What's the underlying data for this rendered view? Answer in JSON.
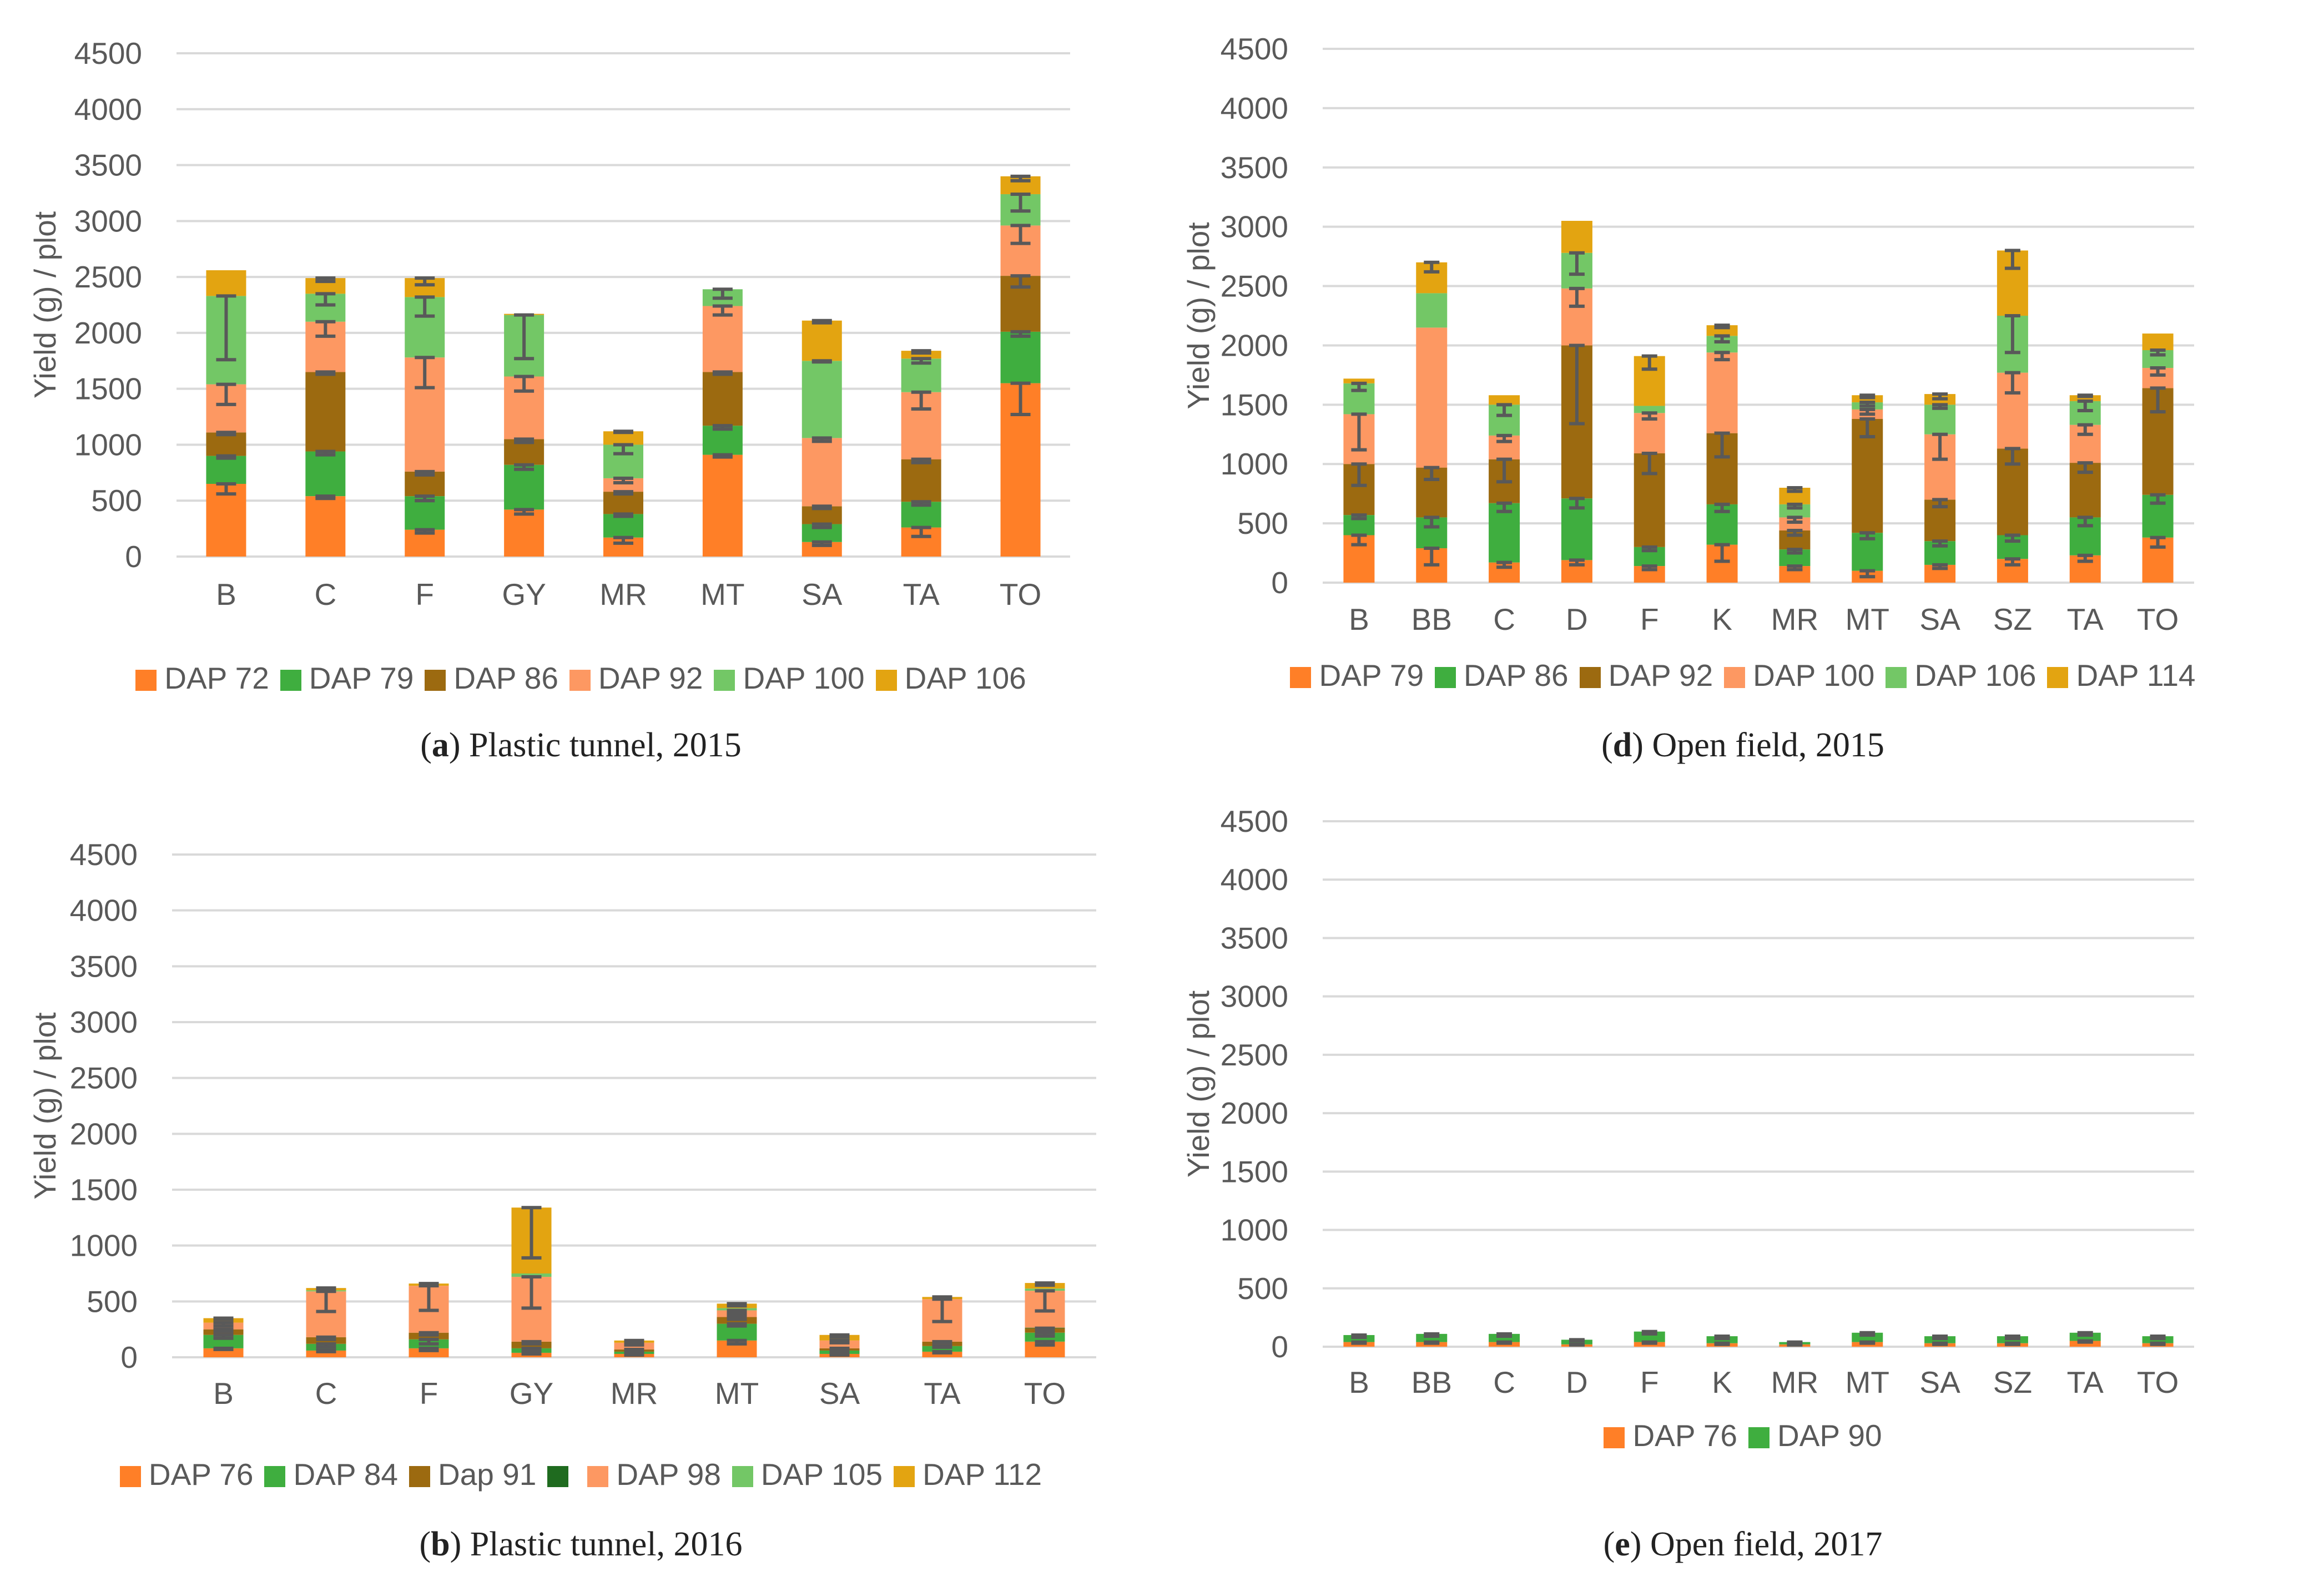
{
  "chart_data": [
    {
      "id": "a",
      "type": "bar",
      "stacked": true,
      "ylabel": "Yield (g) / plot",
      "ylim": [
        0,
        4500
      ],
      "yticks": [
        0,
        500,
        1000,
        1500,
        2000,
        2500,
        3000,
        3500,
        4000,
        4500
      ],
      "grid": true,
      "legend": "bottom",
      "caption": {
        "letter": "a",
        "text": "Plastic tunnel, 2015"
      },
      "categories": [
        "B",
        "C",
        "F",
        "GY",
        "MR",
        "MT",
        "SA",
        "TA",
        "TO"
      ],
      "series": [
        {
          "name": "DAP 72",
          "color": "#ff7f27",
          "values": [
            650,
            540,
            240,
            420,
            170,
            910,
            130,
            260,
            1550
          ],
          "err": [
            90,
            20,
            30,
            40,
            50,
            20,
            30,
            80,
            280
          ]
        },
        {
          "name": "DAP 79",
          "color": "#3fae3f",
          "values": [
            250,
            400,
            300,
            400,
            210,
            260,
            160,
            230,
            460
          ],
          "err": [
            20,
            30,
            40,
            40,
            20,
            30,
            30,
            30,
            40
          ]
        },
        {
          "name": "DAP 86",
          "color": "#9c6a10",
          "values": [
            210,
            710,
            220,
            230,
            200,
            480,
            160,
            380,
            500
          ],
          "err": [
            20,
            20,
            30,
            30,
            20,
            20,
            20,
            30,
            100
          ]
        },
        {
          "name": "DAP 92",
          "color": "#fd9862",
          "values": [
            430,
            450,
            1020,
            560,
            120,
            590,
            610,
            600,
            450
          ],
          "err": [
            180,
            130,
            270,
            130,
            40,
            80,
            30,
            150,
            160
          ]
        },
        {
          "name": "DAP 100",
          "color": "#73c766",
          "values": [
            790,
            250,
            540,
            550,
            300,
            150,
            690,
            300,
            280
          ],
          "err": [
            570,
            100,
            170,
            390,
            80,
            80,
            10,
            40,
            150
          ]
        },
        {
          "name": "DAP 106",
          "color": "#e3a411",
          "values": [
            230,
            140,
            170,
            10,
            120,
            0,
            360,
            70,
            160
          ],
          "err": [
            0,
            30,
            60,
            0,
            10,
            0,
            20,
            20,
            40
          ]
        }
      ]
    },
    {
      "id": "b",
      "type": "bar",
      "stacked": true,
      "ylabel": "Yield (g) / plot",
      "ylim": [
        0,
        4500
      ],
      "yticks": [
        0,
        500,
        1000,
        1500,
        2000,
        2500,
        3000,
        3500,
        4000,
        4500
      ],
      "grid": true,
      "legend": "bottom",
      "caption": {
        "letter": "b",
        "text": "Plastic tunnel, 2016"
      },
      "categories": [
        "B",
        "C",
        "F",
        "GY",
        "MR",
        "MT",
        "SA",
        "TA",
        "TO"
      ],
      "series": [
        {
          "name": "DAP 76",
          "color": "#ff7f27",
          "values": [
            80,
            60,
            80,
            40,
            30,
            150,
            30,
            50,
            140
          ],
          "err": [
            10,
            10,
            20,
            10,
            10,
            30,
            10,
            10,
            30
          ]
        },
        {
          "name": "DAP 84",
          "color": "#3fae3f",
          "values": [
            120,
            60,
            80,
            40,
            20,
            150,
            30,
            50,
            80
          ],
          "err": [
            30,
            30,
            40,
            20,
            10,
            20,
            10,
            10,
            30
          ]
        },
        {
          "name": "Dap 91",
          "color": "#9c6a10",
          "values": [
            50,
            60,
            60,
            60,
            20,
            60,
            20,
            40,
            40
          ],
          "err": [
            20,
            20,
            20,
            20,
            10,
            20,
            10,
            10,
            20
          ]
        },
        {
          "name": "",
          "color": "#1f6b1f",
          "values": [
            0,
            0,
            0,
            0,
            0,
            0,
            0,
            0,
            5
          ],
          "err": [
            0,
            0,
            0,
            0,
            0,
            0,
            0,
            0,
            0
          ]
        },
        {
          "name": "DAP 98",
          "color": "#fd9862",
          "values": [
            60,
            410,
            420,
            580,
            60,
            60,
            70,
            380,
            330
          ],
          "err": [
            30,
            180,
            220,
            280,
            20,
            30,
            20,
            200,
            180
          ]
        },
        {
          "name": "DAP 105",
          "color": "#73c766",
          "values": [
            0,
            10,
            0,
            30,
            0,
            20,
            0,
            0,
            20
          ],
          "err": [
            0,
            0,
            0,
            0,
            0,
            0,
            0,
            0,
            0
          ]
        },
        {
          "name": "DAP 112",
          "color": "#e3a411",
          "values": [
            40,
            20,
            20,
            590,
            20,
            40,
            50,
            20,
            50
          ],
          "err": [
            10,
            10,
            10,
            450,
            10,
            20,
            20,
            10,
            20
          ]
        }
      ]
    },
    {
      "id": "d",
      "type": "bar",
      "stacked": true,
      "ylabel": "Yield (g) / plot",
      "ylim": [
        0,
        4500
      ],
      "yticks": [
        0,
        500,
        1000,
        1500,
        2000,
        2500,
        3000,
        3500,
        4000,
        4500
      ],
      "grid": true,
      "legend": "bottom",
      "caption": {
        "letter": "d",
        "text": "Open field, 2015"
      },
      "categories": [
        "B",
        "BB",
        "C",
        "D",
        "F",
        "K",
        "MR",
        "MT",
        "SA",
        "SZ",
        "TA",
        "TO"
      ],
      "series": [
        {
          "name": "DAP 79",
          "color": "#ff7f27",
          "values": [
            400,
            290,
            170,
            190,
            140,
            320,
            140,
            100,
            150,
            200,
            230,
            380
          ],
          "err": [
            80,
            140,
            40,
            40,
            30,
            140,
            30,
            50,
            30,
            50,
            50,
            80
          ]
        },
        {
          "name": "DAP 86",
          "color": "#3fae3f",
          "values": [
            170,
            260,
            500,
            520,
            160,
            340,
            140,
            320,
            200,
            200,
            320,
            360
          ],
          "err": [
            30,
            80,
            70,
            80,
            30,
            60,
            30,
            50,
            40,
            50,
            70,
            70
          ]
        },
        {
          "name": "DAP 92",
          "color": "#9c6a10",
          "values": [
            430,
            420,
            370,
            1290,
            790,
            600,
            160,
            960,
            350,
            730,
            460,
            900
          ],
          "err": [
            180,
            100,
            190,
            660,
            170,
            200,
            40,
            150,
            60,
            130,
            80,
            200
          ]
        },
        {
          "name": "DAP 100",
          "color": "#fd9862",
          "values": [
            420,
            1180,
            200,
            480,
            340,
            680,
            110,
            80,
            550,
            640,
            320,
            170
          ],
          "err": [
            300,
            0,
            50,
            150,
            50,
            60,
            40,
            40,
            210,
            170,
            80,
            60
          ]
        },
        {
          "name": "DAP 106",
          "color": "#73c766",
          "values": [
            260,
            290,
            260,
            300,
            60,
            140,
            110,
            60,
            250,
            480,
            200,
            150
          ],
          "err": [
            60,
            0,
            90,
            180,
            0,
            50,
            30,
            30,
            30,
            310,
            80,
            40
          ]
        },
        {
          "name": "DAP 114",
          "color": "#e3a411",
          "values": [
            40,
            260,
            80,
            270,
            420,
            90,
            140,
            60,
            90,
            550,
            50,
            140
          ],
          "err": [
            0,
            80,
            0,
            0,
            110,
            20,
            30,
            20,
            40,
            150,
            10,
            0
          ]
        }
      ]
    },
    {
      "id": "e",
      "type": "bar",
      "stacked": true,
      "ylabel": "Yield (g) / plot",
      "ylim": [
        0,
        4500
      ],
      "yticks": [
        0,
        500,
        1000,
        1500,
        2000,
        2500,
        3000,
        3500,
        4000,
        4500
      ],
      "grid": true,
      "legend": "bottom",
      "caption": {
        "letter": "e",
        "text": "Open field, 2017"
      },
      "categories": [
        "B",
        "BB",
        "C",
        "D",
        "F",
        "K",
        "MR",
        "MT",
        "SA",
        "SZ",
        "TA",
        "TO"
      ],
      "series": [
        {
          "name": "DAP 76",
          "color": "#ff7f27",
          "values": [
            40,
            40,
            40,
            20,
            40,
            30,
            20,
            40,
            30,
            30,
            50,
            30
          ],
          "err": [
            10,
            10,
            10,
            5,
            10,
            10,
            5,
            10,
            10,
            10,
            10,
            10
          ]
        },
        {
          "name": "DAP 90",
          "color": "#3fae3f",
          "values": [
            60,
            70,
            70,
            40,
            90,
            60,
            20,
            80,
            60,
            60,
            70,
            60
          ],
          "err": [
            20,
            20,
            20,
            10,
            20,
            20,
            10,
            20,
            20,
            20,
            20,
            20
          ]
        }
      ]
    }
  ]
}
